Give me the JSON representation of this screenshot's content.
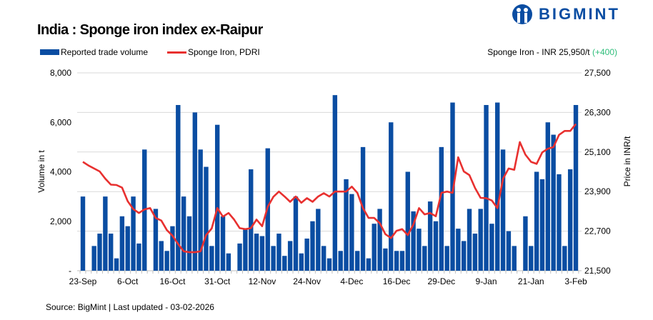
{
  "title": "India : Sponge iron index ex-Raipur",
  "brand": "BIGMINT",
  "latest": {
    "label": "Sponge Iron - INR 25,950/t",
    "change": "(+400)"
  },
  "source": "Source: BigMint | Last updated - 03-02-2026",
  "colors": {
    "bar": "#0a4da2",
    "line": "#e8302f",
    "change": "#2ebd7a",
    "grid": "#d9d9d9"
  },
  "chart_data": {
    "type": "bar+line",
    "title": "India : Sponge iron index ex-Raipur",
    "x_tick_labels": [
      "23-Sep",
      "6-Oct",
      "16-Oct",
      "31-Oct",
      "12-Nov",
      "24-Nov",
      "4-Dec",
      "16-Dec",
      "29-Dec",
      "9-Jan",
      "21-Jan",
      "3-Feb"
    ],
    "x_tick_every": 8,
    "ylabel_left": "Volume in t",
    "ylabel_right": "Price in INR/t",
    "ylim_left": [
      0,
      8000
    ],
    "yticks_left": [
      "-",
      "2,000",
      "4,000",
      "6,000",
      "8,000"
    ],
    "ylim_right": [
      21500,
      27500
    ],
    "yticks_right": [
      "21,500",
      "22,700",
      "23,900",
      "25,100",
      "26,300",
      "27,500"
    ],
    "grid": true,
    "legend_placement": "top-left",
    "series": [
      {
        "name": "Reported trade volume",
        "type": "bar",
        "axis": "left",
        "values": [
          3000,
          0,
          1000,
          1500,
          3000,
          1500,
          500,
          2200,
          1800,
          3000,
          1100,
          4900,
          0,
          2500,
          1200,
          800,
          1800,
          6700,
          3000,
          2200,
          6400,
          4900,
          4200,
          1000,
          5900,
          2200,
          700,
          0,
          1100,
          1700,
          4100,
          1500,
          1400,
          4950,
          1000,
          1500,
          600,
          1200,
          3000,
          700,
          1300,
          2000,
          2500,
          1000,
          500,
          7100,
          800,
          3700,
          3100,
          800,
          5000,
          500,
          1900,
          2500,
          900,
          6000,
          800,
          800,
          4000,
          2400,
          1700,
          1000,
          2800,
          2000,
          5000,
          1000,
          6800,
          1700,
          1200,
          2500,
          1500,
          2500,
          6700,
          1900,
          6800,
          4900,
          1600,
          1000,
          0,
          2200,
          1000,
          4000,
          3700,
          6000,
          5500,
          3900,
          1000,
          4100,
          6700
        ]
      },
      {
        "name": "Sponge Iron, PDRI",
        "type": "line",
        "axis": "right",
        "values": [
          24800,
          24690,
          24600,
          24510,
          24290,
          24110,
          24100,
          24020,
          23610,
          23370,
          23250,
          23360,
          23400,
          23100,
          23020,
          22730,
          22560,
          22310,
          22090,
          22060,
          22060,
          22090,
          22580,
          22780,
          23400,
          23140,
          23250,
          23050,
          22790,
          22760,
          22790,
          23050,
          22850,
          23440,
          23740,
          23900,
          23750,
          23590,
          23750,
          23560,
          23700,
          23590,
          23750,
          23850,
          23750,
          23900,
          23900,
          23900,
          24050,
          23860,
          23400,
          23100,
          23100,
          22940,
          22610,
          22490,
          22710,
          22760,
          22580,
          22900,
          23400,
          23210,
          23250,
          23150,
          23860,
          23900,
          23860,
          24940,
          24510,
          24400,
          24010,
          23710,
          23700,
          23630,
          23400,
          24290,
          24600,
          24560,
          25400,
          25020,
          24800,
          24740,
          25090,
          25200,
          25250,
          25620,
          25740,
          25740,
          25950
        ]
      }
    ]
  }
}
